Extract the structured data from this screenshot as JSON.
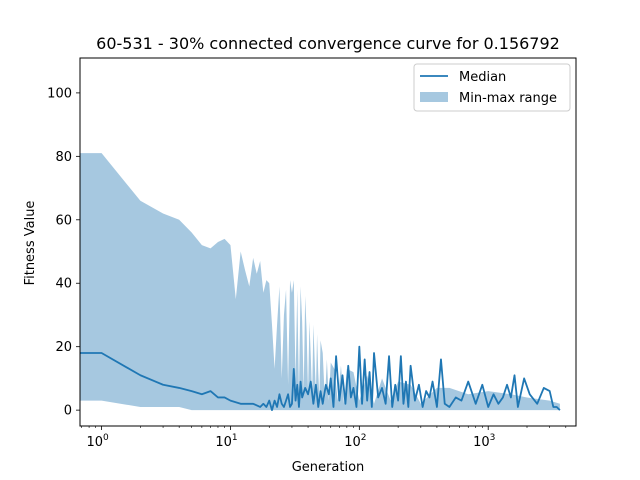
{
  "chart_data": {
    "type": "line",
    "title": "60-531 - 30% connected convergence curve for 0.156792",
    "xlabel": "Generation",
    "ylabel": "Fitness Value",
    "xscale": "log",
    "xlim": [
      0.68,
      4800
    ],
    "ylim": [
      -5,
      111
    ],
    "xticks": [
      {
        "value": 1,
        "base": "10",
        "exp": "0"
      },
      {
        "value": 10,
        "base": "10",
        "exp": "1"
      },
      {
        "value": 100,
        "base": "10",
        "exp": "2"
      },
      {
        "value": 1000,
        "base": "10",
        "exp": "3"
      }
    ],
    "yticks": [
      0,
      20,
      40,
      60,
      80,
      100
    ],
    "grid": false,
    "legend": {
      "position": "top-right",
      "entries": [
        {
          "label": "Median",
          "kind": "line"
        },
        {
          "label": "Min-max range",
          "kind": "patch"
        }
      ]
    },
    "colors": {
      "median": "#1f77b4",
      "range": "#a6c8e0"
    },
    "series": [
      {
        "name": "Median",
        "x": [
          0.68,
          1,
          2,
          3,
          4,
          5,
          6,
          7,
          8,
          9,
          10,
          12,
          15,
          17,
          18,
          19,
          20,
          21,
          22,
          23,
          24,
          25,
          26,
          27,
          28,
          29,
          30,
          31,
          32,
          33,
          34,
          35,
          36,
          38,
          40,
          42,
          44,
          46,
          48,
          50,
          52,
          55,
          58,
          60,
          63,
          66,
          70,
          74,
          78,
          82,
          86,
          90,
          95,
          100,
          105,
          110,
          115,
          120,
          125,
          130,
          140,
          150,
          160,
          170,
          180,
          190,
          200,
          210,
          220,
          230,
          240,
          250,
          270,
          290,
          310,
          330,
          350,
          370,
          400,
          430,
          460,
          500,
          560,
          620,
          700,
          800,
          900,
          1000,
          1100,
          1200,
          1300,
          1400,
          1500,
          1600,
          1700,
          1900,
          2100,
          2400,
          2700,
          3000,
          3200,
          3400,
          3600
        ],
        "values": [
          18,
          18,
          11,
          8,
          7,
          6,
          5,
          6,
          4,
          4,
          3,
          2,
          2,
          1,
          2,
          1,
          3,
          0,
          3,
          1,
          5,
          2,
          1,
          3,
          5,
          1,
          2,
          13,
          3,
          8,
          1,
          9,
          4,
          7,
          5,
          9,
          2,
          8,
          1,
          6,
          2,
          8,
          5,
          10,
          1,
          17,
          3,
          11,
          2,
          14,
          4,
          7,
          1,
          20,
          2,
          16,
          3,
          12,
          1,
          18,
          4,
          7,
          2,
          17,
          1,
          8,
          3,
          17,
          2,
          9,
          1,
          14,
          3,
          8,
          1,
          6,
          4,
          9,
          1,
          16,
          2,
          1,
          4,
          3,
          9,
          2,
          8,
          1,
          5,
          2,
          4,
          8,
          4,
          11,
          1,
          10,
          5,
          2,
          7,
          6,
          1,
          1,
          0
        ]
      },
      {
        "name": "Min-max range",
        "x": [
          0.68,
          1,
          2,
          3,
          4,
          5,
          6,
          7,
          8,
          9,
          10,
          11,
          12,
          13,
          14,
          15,
          16,
          17,
          18,
          19,
          20,
          21,
          22,
          23,
          24,
          25,
          26,
          27,
          28,
          29,
          30,
          31,
          32,
          33,
          34,
          35,
          36,
          37,
          38,
          39,
          40,
          41,
          42,
          43,
          44,
          45,
          46,
          47,
          48,
          49,
          50,
          52,
          54,
          56,
          58,
          60,
          64,
          68,
          72,
          76,
          80,
          90,
          100,
          115,
          130,
          150,
          175,
          200,
          250,
          300,
          400,
          500,
          700,
          1000,
          1500,
          2000,
          3000,
          3600
        ],
        "min": [
          3,
          3,
          1,
          1,
          1,
          0,
          0,
          0,
          0,
          0,
          0,
          0,
          0,
          0,
          0,
          0,
          0,
          0,
          0,
          0,
          0,
          0,
          0,
          0,
          0,
          0,
          0,
          0,
          0,
          0,
          0,
          0,
          0,
          0,
          0,
          0,
          0,
          0,
          0,
          0,
          0,
          0,
          0,
          0,
          0,
          0,
          0,
          0,
          0,
          0,
          0,
          0,
          0,
          0,
          0,
          0,
          0,
          0,
          0,
          0,
          0,
          0,
          0,
          0,
          0,
          0,
          0,
          0,
          0,
          0,
          0,
          0,
          0,
          0,
          0,
          0,
          0,
          0
        ],
        "max": [
          81,
          81,
          66,
          62,
          60,
          56,
          52,
          51,
          53,
          54,
          52,
          35,
          50,
          44,
          39,
          48,
          43,
          47,
          37,
          41,
          40,
          27,
          13,
          27,
          39,
          10,
          30,
          38,
          8,
          41,
          37,
          41,
          10,
          38,
          5,
          39,
          28,
          6,
          36,
          25,
          5,
          28,
          17,
          4,
          27,
          16,
          5,
          24,
          12,
          4,
          22,
          18,
          3,
          16,
          3,
          15,
          13,
          3,
          14,
          2,
          13,
          12,
          3,
          11,
          2,
          10,
          3,
          9,
          8,
          2,
          7,
          7,
          5,
          6,
          5,
          4,
          3,
          2
        ]
      }
    ]
  }
}
